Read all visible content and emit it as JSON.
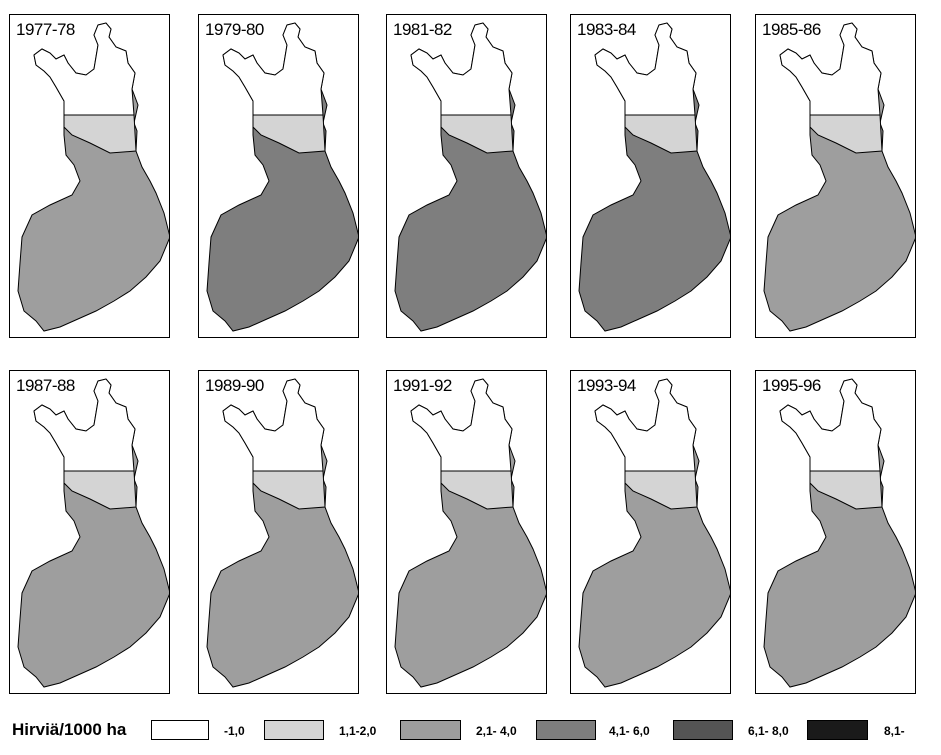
{
  "colors": {
    "c1": "#ffffff",
    "c2": "#d4d4d4",
    "c3": "#9e9e9e",
    "c4": "#7e7e7e",
    "c5": "#545454",
    "c6": "#1a1a1a",
    "outline": "#000000"
  },
  "panels": [
    {
      "label": "1977-78",
      "level": "c3"
    },
    {
      "label": "1979-80",
      "level": "c4"
    },
    {
      "label": "1981-82",
      "level": "c4"
    },
    {
      "label": "1983-84",
      "level": "c4"
    },
    {
      "label": "1985-86",
      "level": "c3"
    },
    {
      "label": "1987-88",
      "level": "c3"
    },
    {
      "label": "1989-90",
      "level": "c3"
    },
    {
      "label": "1991-92",
      "level": "c3"
    },
    {
      "label": "1993-94",
      "level": "c3"
    },
    {
      "label": "1995-96",
      "level": "c3"
    }
  ],
  "legend": {
    "title": "Hirviä/1000 ha",
    "items": [
      {
        "label": "-1,0",
        "color": "c1"
      },
      {
        "label": "1,1-2,0",
        "color": "c2"
      },
      {
        "label": "2,1- 4,0",
        "color": "c3"
      },
      {
        "label": "4,1- 6,0",
        "color": "c4"
      },
      {
        "label": "6,1- 8,0",
        "color": "c5"
      },
      {
        "label": "8,1-",
        "color": "c6"
      }
    ]
  }
}
